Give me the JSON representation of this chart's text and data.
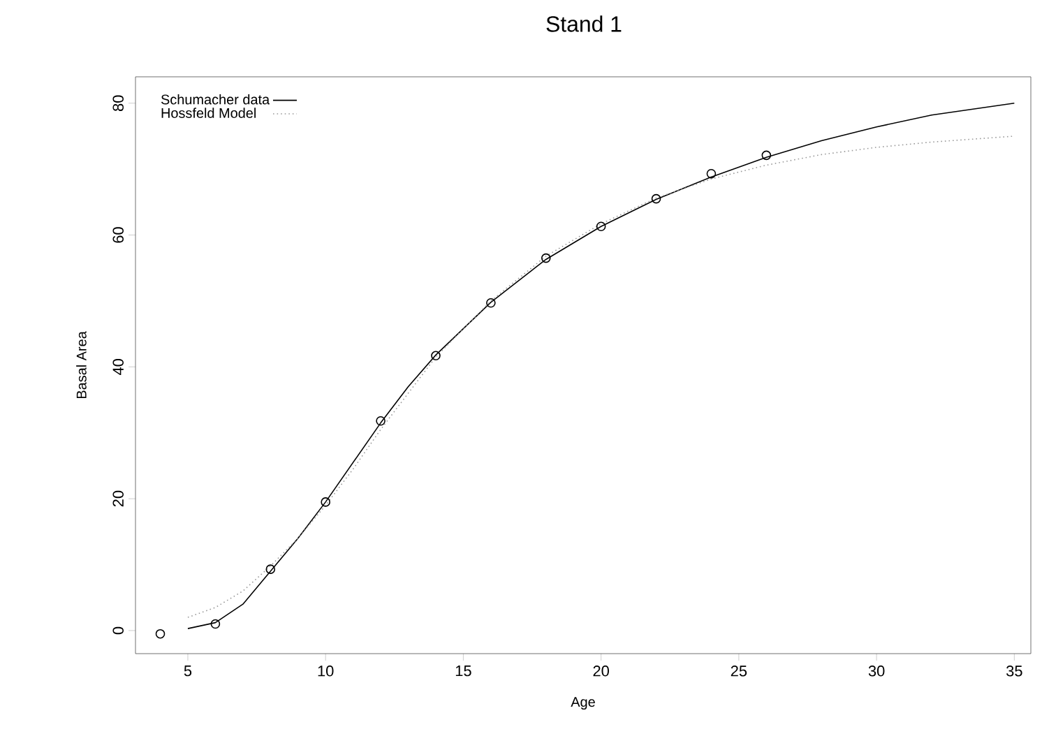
{
  "chart_data": {
    "type": "line",
    "title": "Stand 1",
    "xlabel": "Age",
    "ylabel": "Basal Area",
    "xlim": [
      3.1,
      35.6
    ],
    "ylim": [
      -3.5,
      84
    ],
    "xticks": [
      5,
      10,
      15,
      20,
      25,
      30,
      35
    ],
    "yticks": [
      0,
      20,
      40,
      60,
      80
    ],
    "legend": "top left",
    "grid": false,
    "series": [
      {
        "type": "scatter",
        "marker": "circle",
        "color": "#000000",
        "x": [
          4,
          6,
          8,
          10,
          12,
          14,
          16,
          18,
          20,
          22,
          24,
          26
        ],
        "values": [
          -0.5,
          1,
          9.3,
          19.5,
          31.8,
          41.7,
          49.7,
          56.5,
          61.3,
          65.5,
          69.3,
          72.1
        ]
      },
      {
        "name": "Schumacher data",
        "color": "#000000",
        "line_style": "solid",
        "x": [
          5,
          6,
          7,
          8,
          9,
          10,
          11,
          12,
          13,
          14,
          16,
          18,
          20,
          22,
          24,
          26,
          28,
          30,
          32,
          35
        ],
        "values": [
          0.3,
          1.2,
          4,
          9,
          14,
          19.5,
          25.5,
          31.5,
          37,
          41.8,
          49.8,
          56.3,
          61.3,
          65.4,
          68.8,
          71.8,
          74.3,
          76.4,
          78.2,
          80
        ]
      },
      {
        "name": "Hossfeld Model",
        "color": "#999999",
        "line_style": "dotted",
        "x": [
          5,
          6,
          7,
          8,
          9,
          10,
          11,
          12,
          13,
          14,
          16,
          18,
          20,
          22,
          24,
          26,
          28,
          30,
          32,
          35
        ],
        "values": [
          2,
          3.5,
          6,
          9.8,
          14,
          19,
          24.5,
          30.5,
          36,
          41.5,
          50,
          56.8,
          61.7,
          65.6,
          68.5,
          70.6,
          72.2,
          73.3,
          74.1,
          75
        ]
      }
    ]
  }
}
